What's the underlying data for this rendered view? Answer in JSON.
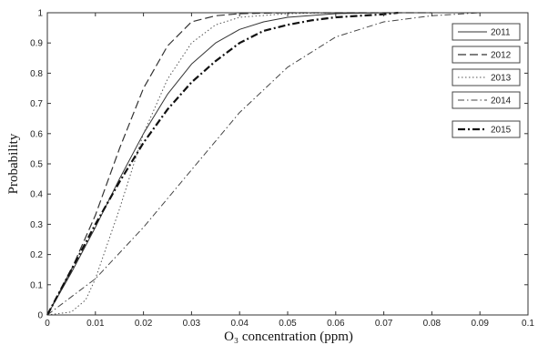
{
  "chart_data": {
    "type": "line",
    "title": "",
    "xlabel": "O₃ concentration (ppm)",
    "ylabel": "Probability",
    "xlim": [
      0,
      0.1
    ],
    "ylim": [
      0,
      1
    ],
    "x_ticks": [
      "0",
      "0.01",
      "0.02",
      "0.03",
      "0.04",
      "0.05",
      "0.06",
      "0.07",
      "0.08",
      "0.09",
      "0.1"
    ],
    "y_ticks": [
      "0",
      "0.1",
      "0.2",
      "0.3",
      "0.4",
      "0.5",
      "0.6",
      "0.7",
      "0.8",
      "0.9",
      "1"
    ],
    "grid": false,
    "legend_position": "right",
    "series": [
      {
        "name": "2011",
        "style": "solid",
        "color": "#333333",
        "x": [
          0,
          0.005,
          0.01,
          0.015,
          0.02,
          0.025,
          0.03,
          0.035,
          0.04,
          0.045,
          0.05,
          0.06,
          0.07,
          0.08
        ],
        "y": [
          0,
          0.14,
          0.29,
          0.45,
          0.6,
          0.73,
          0.83,
          0.9,
          0.945,
          0.97,
          0.985,
          0.997,
          1,
          1
        ]
      },
      {
        "name": "2012",
        "style": "dashed",
        "color": "#333333",
        "x": [
          0,
          0.005,
          0.01,
          0.015,
          0.02,
          0.025,
          0.03,
          0.035,
          0.04,
          0.05,
          0.06,
          0.07,
          0.08
        ],
        "y": [
          0,
          0.15,
          0.33,
          0.55,
          0.75,
          0.89,
          0.97,
          0.99,
          0.997,
          1,
          1,
          1,
          1
        ]
      },
      {
        "name": "2013",
        "style": "dotted",
        "color": "#555555",
        "x": [
          0,
          0.005,
          0.008,
          0.01,
          0.015,
          0.02,
          0.025,
          0.03,
          0.035,
          0.04,
          0.05,
          0.06,
          0.07
        ],
        "y": [
          0,
          0.01,
          0.05,
          0.12,
          0.35,
          0.6,
          0.78,
          0.9,
          0.96,
          0.985,
          0.997,
          1,
          1
        ]
      },
      {
        "name": "2014",
        "style": "dashdot",
        "color": "#444444",
        "x": [
          0,
          0.01,
          0.02,
          0.03,
          0.04,
          0.05,
          0.06,
          0.07,
          0.08,
          0.09
        ],
        "y": [
          0,
          0.12,
          0.29,
          0.48,
          0.67,
          0.82,
          0.92,
          0.97,
          0.99,
          1
        ]
      },
      {
        "name": "2015",
        "style": "dashdot-bold",
        "color": "#111111",
        "x": [
          0,
          0.005,
          0.01,
          0.015,
          0.02,
          0.025,
          0.03,
          0.035,
          0.04,
          0.045,
          0.05,
          0.055,
          0.06,
          0.065,
          0.07,
          0.073
        ],
        "y": [
          0,
          0.15,
          0.3,
          0.44,
          0.57,
          0.68,
          0.77,
          0.84,
          0.9,
          0.94,
          0.96,
          0.975,
          0.985,
          0.99,
          0.995,
          1
        ]
      }
    ]
  }
}
